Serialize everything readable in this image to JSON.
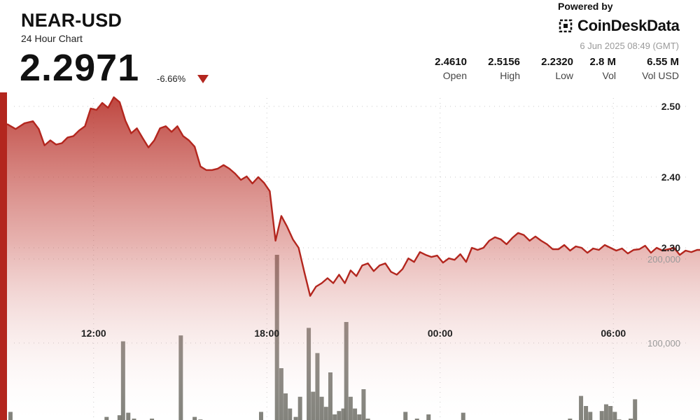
{
  "header": {
    "pair": "NEAR-USD",
    "subtitle": "24 Hour Chart",
    "price": "2.2971",
    "change": "-6.66%",
    "powered_by": "Powered by",
    "brand": "CoinDeskData",
    "timestamp": "6 Jun 2025 08:49 (GMT)",
    "stats": [
      {
        "value": "2.4610",
        "label": "Open"
      },
      {
        "value": "2.5156",
        "label": "High"
      },
      {
        "value": "2.2320",
        "label": "Low"
      },
      {
        "value": "2.8 M",
        "label": "Vol"
      },
      {
        "value": "6.55 M",
        "label": "Vol USD"
      }
    ]
  },
  "colors": {
    "accent": "#b3261e",
    "line": "#b3261e",
    "volume_bar": "#6e6e66",
    "grid": "#c8c8c8"
  },
  "chart_data": {
    "type": "line",
    "price_axis": {
      "ylim": [
        2.2,
        2.55
      ],
      "ticks": [
        "2.50",
        "2.40",
        "2.30"
      ],
      "tick_values": [
        2.5,
        2.4,
        2.3
      ]
    },
    "volume_axis": {
      "ylim": [
        0,
        240000
      ],
      "ticks": [
        "200,000",
        "100,000"
      ],
      "tick_values": [
        200000,
        100000
      ]
    },
    "time_axis": {
      "x_range_hours": [
        9,
        33
      ],
      "ticks": [
        "12:00",
        "18:00",
        "00:00",
        "06:00"
      ],
      "tick_hours": [
        12,
        18,
        24,
        30
      ]
    },
    "price_series": [
      [
        9.0,
        2.475
      ],
      [
        9.3,
        2.468
      ],
      [
        9.6,
        2.476
      ],
      [
        9.9,
        2.479
      ],
      [
        10.1,
        2.468
      ],
      [
        10.3,
        2.445
      ],
      [
        10.5,
        2.452
      ],
      [
        10.7,
        2.446
      ],
      [
        10.9,
        2.448
      ],
      [
        11.1,
        2.456
      ],
      [
        11.3,
        2.458
      ],
      [
        11.5,
        2.466
      ],
      [
        11.7,
        2.472
      ],
      [
        11.9,
        2.497
      ],
      [
        12.1,
        2.495
      ],
      [
        12.3,
        2.505
      ],
      [
        12.5,
        2.498
      ],
      [
        12.7,
        2.513
      ],
      [
        12.9,
        2.506
      ],
      [
        13.1,
        2.48
      ],
      [
        13.3,
        2.462
      ],
      [
        13.5,
        2.469
      ],
      [
        13.7,
        2.455
      ],
      [
        13.9,
        2.442
      ],
      [
        14.1,
        2.452
      ],
      [
        14.3,
        2.469
      ],
      [
        14.5,
        2.472
      ],
      [
        14.7,
        2.464
      ],
      [
        14.9,
        2.472
      ],
      [
        15.1,
        2.458
      ],
      [
        15.3,
        2.452
      ],
      [
        15.5,
        2.443
      ],
      [
        15.7,
        2.415
      ],
      [
        15.9,
        2.41
      ],
      [
        16.1,
        2.41
      ],
      [
        16.3,
        2.412
      ],
      [
        16.5,
        2.417
      ],
      [
        16.7,
        2.412
      ],
      [
        16.9,
        2.405
      ],
      [
        17.1,
        2.396
      ],
      [
        17.3,
        2.401
      ],
      [
        17.5,
        2.391
      ],
      [
        17.7,
        2.4
      ],
      [
        17.9,
        2.392
      ],
      [
        18.1,
        2.38
      ],
      [
        18.3,
        2.31
      ],
      [
        18.5,
        2.345
      ],
      [
        18.7,
        2.33
      ],
      [
        18.9,
        2.312
      ],
      [
        19.1,
        2.3
      ],
      [
        19.3,
        2.265
      ],
      [
        19.5,
        2.232
      ],
      [
        19.7,
        2.245
      ],
      [
        19.9,
        2.25
      ],
      [
        20.1,
        2.257
      ],
      [
        20.3,
        2.25
      ],
      [
        20.5,
        2.262
      ],
      [
        20.7,
        2.25
      ],
      [
        20.9,
        2.268
      ],
      [
        21.1,
        2.26
      ],
      [
        21.3,
        2.275
      ],
      [
        21.5,
        2.278
      ],
      [
        21.7,
        2.267
      ],
      [
        21.9,
        2.275
      ],
      [
        22.1,
        2.278
      ],
      [
        22.3,
        2.266
      ],
      [
        22.5,
        2.262
      ],
      [
        22.7,
        2.27
      ],
      [
        22.9,
        2.285
      ],
      [
        23.1,
        2.28
      ],
      [
        23.3,
        2.294
      ],
      [
        23.5,
        2.29
      ],
      [
        23.7,
        2.287
      ],
      [
        23.9,
        2.289
      ],
      [
        24.1,
        2.279
      ],
      [
        24.3,
        2.285
      ],
      [
        24.5,
        2.283
      ],
      [
        24.7,
        2.291
      ],
      [
        24.9,
        2.28
      ],
      [
        25.1,
        2.3
      ],
      [
        25.3,
        2.297
      ],
      [
        25.5,
        2.3
      ],
      [
        25.7,
        2.31
      ],
      [
        25.9,
        2.315
      ],
      [
        26.1,
        2.312
      ],
      [
        26.3,
        2.305
      ],
      [
        26.5,
        2.314
      ],
      [
        26.7,
        2.321
      ],
      [
        26.9,
        2.318
      ],
      [
        27.1,
        2.31
      ],
      [
        27.3,
        2.316
      ],
      [
        27.5,
        2.31
      ],
      [
        27.7,
        2.305
      ],
      [
        27.9,
        2.298
      ],
      [
        28.1,
        2.298
      ],
      [
        28.3,
        2.304
      ],
      [
        28.5,
        2.296
      ],
      [
        28.7,
        2.302
      ],
      [
        28.9,
        2.3
      ],
      [
        29.1,
        2.293
      ],
      [
        29.3,
        2.299
      ],
      [
        29.5,
        2.297
      ],
      [
        29.7,
        2.304
      ],
      [
        29.9,
        2.3
      ],
      [
        30.1,
        2.296
      ],
      [
        30.3,
        2.299
      ],
      [
        30.5,
        2.292
      ],
      [
        30.7,
        2.297
      ],
      [
        30.9,
        2.298
      ],
      [
        31.1,
        2.303
      ],
      [
        31.3,
        2.293
      ],
      [
        31.5,
        2.3
      ],
      [
        31.7,
        2.296
      ],
      [
        31.9,
        2.298
      ],
      [
        32.1,
        2.3
      ],
      [
        32.3,
        2.29
      ],
      [
        32.5,
        2.296
      ],
      [
        32.7,
        2.294
      ],
      [
        32.9,
        2.297
      ],
      [
        33.0,
        2.297
      ]
    ],
    "volume_series": [
      [
        9.12,
        18000
      ],
      [
        9.3,
        2000
      ],
      [
        9.5,
        3000
      ],
      [
        9.7,
        1500
      ],
      [
        10.0,
        2500
      ],
      [
        10.3,
        4000
      ],
      [
        10.6,
        3000
      ],
      [
        10.9,
        2000
      ],
      [
        11.2,
        3500
      ],
      [
        11.5,
        1500
      ],
      [
        11.8,
        3000
      ],
      [
        12.05,
        6000
      ],
      [
        12.25,
        8000
      ],
      [
        12.45,
        12000
      ],
      [
        12.7,
        5000
      ],
      [
        12.9,
        14000
      ],
      [
        13.02,
        102000
      ],
      [
        13.2,
        17000
      ],
      [
        13.4,
        10000
      ],
      [
        13.6,
        4000
      ],
      [
        13.8,
        3000
      ],
      [
        14.02,
        10000
      ],
      [
        14.2,
        6000
      ],
      [
        14.4,
        5000
      ],
      [
        14.6,
        3000
      ],
      [
        14.9,
        6000
      ],
      [
        15.02,
        109000
      ],
      [
        15.2,
        4000
      ],
      [
        15.5,
        12000
      ],
      [
        15.7,
        9000
      ],
      [
        15.9,
        4000
      ],
      [
        16.1,
        3000
      ],
      [
        16.3,
        5000
      ],
      [
        16.6,
        2000
      ],
      [
        16.8,
        4000
      ],
      [
        17.0,
        6000
      ],
      [
        17.2,
        5000
      ],
      [
        17.4,
        8000
      ],
      [
        17.6,
        2000
      ],
      [
        17.8,
        18000
      ],
      [
        18.0,
        3000
      ],
      [
        18.2,
        8000
      ],
      [
        18.35,
        205000
      ],
      [
        18.5,
        70000
      ],
      [
        18.65,
        40000
      ],
      [
        18.8,
        22000
      ],
      [
        19.0,
        12000
      ],
      [
        19.15,
        36000
      ],
      [
        19.3,
        8000
      ],
      [
        19.45,
        118000
      ],
      [
        19.6,
        42000
      ],
      [
        19.75,
        88000
      ],
      [
        19.9,
        36000
      ],
      [
        20.05,
        24000
      ],
      [
        20.2,
        65000
      ],
      [
        20.35,
        15000
      ],
      [
        20.5,
        19000
      ],
      [
        20.65,
        22000
      ],
      [
        20.75,
        125000
      ],
      [
        20.9,
        36000
      ],
      [
        21.05,
        22000
      ],
      [
        21.2,
        15000
      ],
      [
        21.35,
        45000
      ],
      [
        21.5,
        10000
      ],
      [
        21.65,
        5000
      ],
      [
        21.8,
        2000
      ],
      [
        22.0,
        5000
      ],
      [
        22.2,
        8000
      ],
      [
        22.4,
        4000
      ],
      [
        22.6,
        3000
      ],
      [
        22.8,
        18000
      ],
      [
        23.0,
        4000
      ],
      [
        23.2,
        10000
      ],
      [
        23.4,
        6000
      ],
      [
        23.6,
        15000
      ],
      [
        23.8,
        3000
      ],
      [
        24.0,
        7000
      ],
      [
        24.2,
        5000
      ],
      [
        24.4,
        3000
      ],
      [
        24.6,
        4000
      ],
      [
        24.8,
        17000
      ],
      [
        25.0,
        5000
      ],
      [
        25.3,
        3000
      ],
      [
        25.6,
        4000
      ],
      [
        25.8,
        4000
      ],
      [
        26.1,
        2000
      ],
      [
        26.3,
        4000
      ],
      [
        26.5,
        6000
      ],
      [
        26.7,
        5000
      ],
      [
        26.9,
        3000
      ],
      [
        27.2,
        5000
      ],
      [
        27.5,
        3000
      ],
      [
        27.8,
        2000
      ],
      [
        28.0,
        2000
      ],
      [
        28.2,
        4000
      ],
      [
        28.5,
        10000
      ],
      [
        28.7,
        7000
      ],
      [
        28.88,
        37000
      ],
      [
        29.05,
        25000
      ],
      [
        29.2,
        18000
      ],
      [
        29.4,
        8000
      ],
      [
        29.6,
        19000
      ],
      [
        29.75,
        27000
      ],
      [
        29.9,
        25000
      ],
      [
        30.05,
        18000
      ],
      [
        30.2,
        9000
      ],
      [
        30.4,
        6000
      ],
      [
        30.6,
        10000
      ],
      [
        30.75,
        33000
      ],
      [
        30.9,
        3000
      ],
      [
        31.1,
        7000
      ],
      [
        31.3,
        3000
      ],
      [
        31.5,
        5000
      ],
      [
        31.7,
        2000
      ],
      [
        31.9,
        3000
      ],
      [
        32.2,
        7000
      ],
      [
        32.45,
        3000
      ],
      [
        32.7,
        5000
      ],
      [
        32.85,
        3000
      ]
    ]
  }
}
